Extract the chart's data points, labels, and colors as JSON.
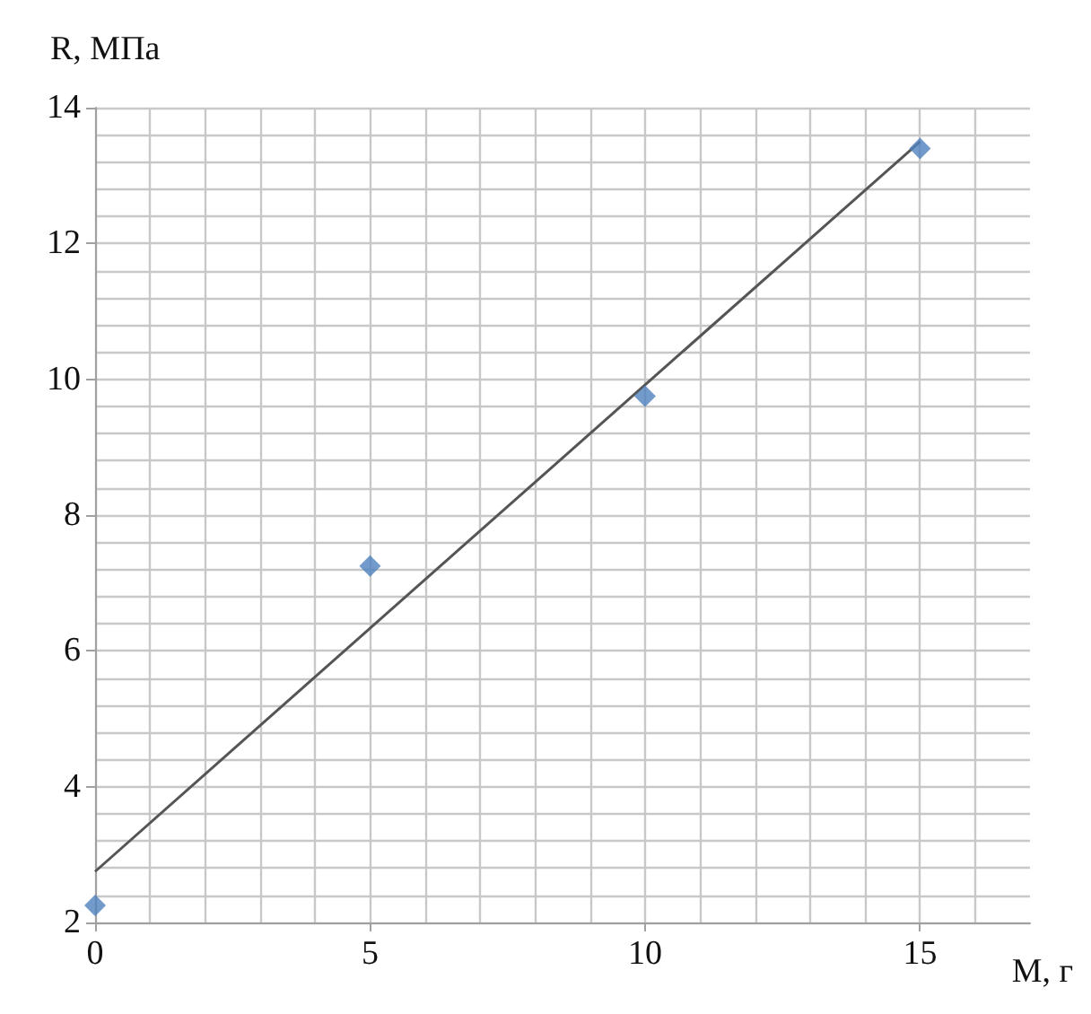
{
  "chart_data": {
    "type": "scatter",
    "xlabel": "M, г",
    "ylabel": "R, МПа",
    "series": [
      {
        "color": "#4f81bd",
        "marker": "diamond",
        "x": [
          0,
          5,
          10,
          15
        ],
        "values": [
          2.25,
          7.25,
          9.75,
          13.4
        ]
      },
      {
        "type": "line",
        "color": "#555555",
        "marker": "none",
        "x": [
          0,
          15
        ],
        "values": [
          2.75,
          13.5
        ]
      }
    ],
    "xlim": [
      0,
      17
    ],
    "xticks": [
      0,
      5,
      10,
      15
    ],
    "ylim": [
      2,
      14
    ],
    "yticks": [
      2,
      4,
      6,
      8,
      10,
      12,
      14
    ],
    "grid": true
  }
}
